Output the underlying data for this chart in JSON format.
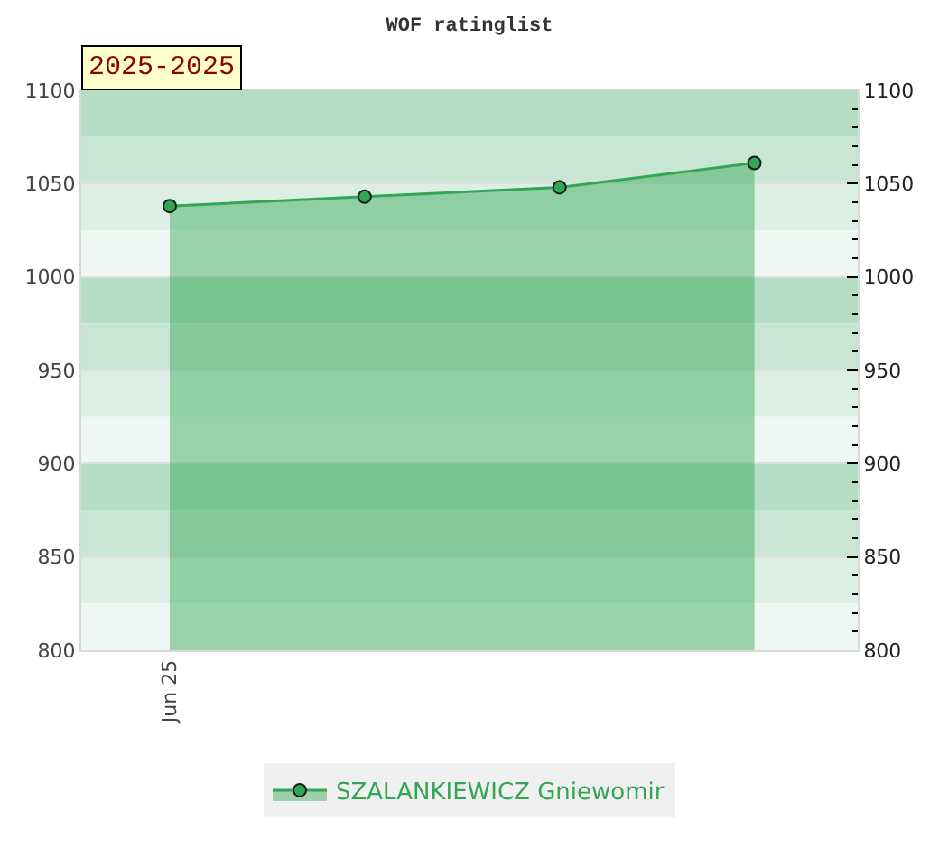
{
  "chart_data": {
    "type": "area",
    "title": "WOF ratinglist",
    "categories": [
      "Jun 25",
      null,
      null,
      null
    ],
    "series": [
      {
        "name": "SZALANKIEWICZ Gniewomir",
        "color": "#33a655",
        "values": [
          1038,
          1043,
          1048,
          1061
        ]
      }
    ],
    "ylim": [
      800,
      1100
    ],
    "yticks": [
      800,
      850,
      900,
      950,
      1000,
      1050,
      1100
    ],
    "y2lim": [
      800,
      1100
    ],
    "y2ticks": [
      800,
      {
        "value": 810,
        "label": null
      },
      {
        "value": 820,
        "label": null
      },
      {
        "value": 830,
        "label": null
      },
      {
        "value": 840,
        "label": null
      },
      850,
      {
        "value": 860,
        "label": null
      },
      {
        "value": 870,
        "label": null
      },
      {
        "value": 880,
        "label": null
      },
      {
        "value": 890,
        "label": null
      },
      900,
      {
        "value": 910,
        "label": null
      },
      {
        "value": 920,
        "label": null
      },
      {
        "value": 930,
        "label": null
      },
      {
        "value": 940,
        "label": null
      },
      950,
      {
        "value": 960,
        "label": null
      },
      {
        "value": 970,
        "label": null
      },
      {
        "value": 980,
        "label": null
      },
      {
        "value": 990,
        "label": null
      },
      1000,
      {
        "value": 1010,
        "label": null
      },
      {
        "value": 1020,
        "label": null
      },
      {
        "value": 1030,
        "label": null
      },
      {
        "value": 1040,
        "label": null
      },
      1050,
      {
        "value": 1060,
        "label": null
      },
      {
        "value": 1070,
        "label": null
      },
      {
        "value": 1080,
        "label": null
      },
      {
        "value": 1090,
        "label": null
      },
      1100
    ],
    "grid": "y",
    "legend": "bottom",
    "marker": "circle",
    "line_style": "solid",
    "annotations": [
      "2025-2025"
    ],
    "bands": [
      {
        "axis": "y",
        "from": 1075,
        "to": 1100,
        "color": "#b3dec3"
      },
      {
        "axis": "y",
        "from": 1050,
        "to": 1075,
        "color": "#c9e6d5"
      },
      {
        "axis": "y",
        "from": 1025,
        "to": 1050,
        "color": "#dcefe4"
      },
      {
        "axis": "y",
        "from": 1000,
        "to": 1025,
        "color": "#eff7f2"
      },
      {
        "axis": "y",
        "from": 975,
        "to": 1000,
        "color": "#b3dec3"
      },
      {
        "axis": "y",
        "from": 950,
        "to": 975,
        "color": "#c9e6d5"
      },
      {
        "axis": "y",
        "from": 925,
        "to": 950,
        "color": "#dcefe4"
      },
      {
        "axis": "y",
        "from": 900,
        "to": 925,
        "color": "#eff7f2"
      },
      {
        "axis": "y",
        "from": 875,
        "to": 900,
        "color": "#b3dec3"
      },
      {
        "axis": "y",
        "from": 850,
        "to": 875,
        "color": "#c9e6d5"
      },
      {
        "axis": "y",
        "from": 825,
        "to": 850,
        "color": "#dcefe4"
      },
      {
        "axis": "y",
        "from": 800,
        "to": 825,
        "color": "#eff7f2"
      }
    ]
  }
}
